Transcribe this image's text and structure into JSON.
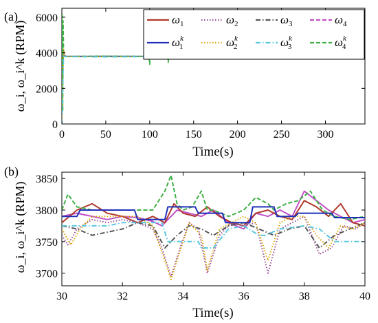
{
  "chart_data": [
    {
      "panel_label": "(a)",
      "type": "line",
      "xlabel": "Time(s)",
      "ylabel": "ω_i, ω_i^k (RPM)",
      "xlim": [
        0,
        345
      ],
      "ylim": [
        0,
        6500
      ],
      "xticks": [
        0,
        50,
        100,
        150,
        200,
        250,
        300
      ],
      "yticks": [
        0,
        2000,
        4000,
        6000
      ],
      "grid": false,
      "legend_position": "top-right",
      "legend": [
        {
          "main": "ω",
          "sub": "1",
          "sup": "",
          "color": "#b03a2e",
          "dash": "solid"
        },
        {
          "main": "ω",
          "sub": "2",
          "sup": "",
          "color": "#9b4f96",
          "dash": "dot"
        },
        {
          "main": "ω",
          "sub": "3",
          "sup": "",
          "color": "#555555",
          "dash": "dashdot"
        },
        {
          "main": "ω",
          "sub": "4",
          "sup": "",
          "color": "#c050c8",
          "dash": "dash"
        },
        {
          "main": "ω",
          "sub": "1",
          "sup": "k",
          "color": "#1f2fb8",
          "dash": "solid"
        },
        {
          "main": "ω",
          "sub": "2",
          "sup": "k",
          "color": "#d9a400",
          "dash": "dot"
        },
        {
          "main": "ω",
          "sub": "3",
          "sup": "k",
          "color": "#58c8e0",
          "dash": "dashdot"
        },
        {
          "main": "ω",
          "sub": "4",
          "sup": "k",
          "color": "#3cb043",
          "dash": "dash"
        }
      ],
      "series": [
        {
          "color": "#b03a2e",
          "dash": "solid",
          "x": [
            0,
            1,
            2,
            3,
            5,
            10,
            50,
            100,
            101,
            102,
            150,
            200,
            220,
            221,
            250,
            300,
            338
          ],
          "y": [
            0,
            3200,
            4100,
            3850,
            3800,
            3790,
            3800,
            3790,
            3850,
            3790,
            3800,
            3790,
            3830,
            3790,
            3800,
            3790,
            3800
          ]
        },
        {
          "color": "#1f2fb8",
          "dash": "solid",
          "x": [
            0,
            1,
            3,
            50,
            100,
            150,
            200,
            250,
            300,
            338
          ],
          "y": [
            3800,
            3800,
            3800,
            3800,
            3800,
            3780,
            3800,
            3790,
            3800,
            3790
          ]
        },
        {
          "color": "#3cb043",
          "dash": "dash",
          "x": [
            0,
            0.5,
            1,
            1.5,
            2,
            3,
            50,
            99,
            100,
            101,
            120,
            121,
            122,
            150,
            200,
            239,
            240,
            241,
            300,
            338
          ],
          "y": [
            300,
            6200,
            700,
            5800,
            3900,
            3800,
            3810,
            3800,
            3350,
            3800,
            3800,
            3450,
            3800,
            3800,
            3800,
            3800,
            4300,
            3800,
            3800,
            3800
          ]
        },
        {
          "color": "#d9a400",
          "dash": "dot",
          "x": [
            0,
            1,
            2,
            3,
            50,
            100,
            150,
            200,
            250,
            300,
            338
          ],
          "y": [
            0,
            2500,
            4200,
            3800,
            3780,
            3790,
            3780,
            3800,
            3790,
            3780,
            3790
          ]
        },
        {
          "color": "#58c8e0",
          "dash": "dashdot",
          "x": [
            0,
            1,
            2,
            3,
            50,
            100,
            150,
            200,
            250,
            300,
            338
          ],
          "y": [
            0,
            2000,
            3900,
            3780,
            3770,
            3780,
            3770,
            3780,
            3770,
            3780,
            3770
          ]
        }
      ]
    },
    {
      "panel_label": "(b)",
      "type": "line",
      "xlabel": "Time(s)",
      "ylabel": "ω_i, ω_i^k (RPM)",
      "xlim": [
        30,
        40
      ],
      "ylim": [
        3680,
        3860
      ],
      "xticks": [
        30,
        32,
        34,
        36,
        38,
        40
      ],
      "yticks": [
        3700,
        3750,
        3800,
        3850
      ],
      "grid": false,
      "series": [
        {
          "color": "#c050c8",
          "dash": "solid",
          "x": [
            30,
            30.5,
            31,
            31.5,
            32,
            32.5,
            33,
            33.3,
            33.6,
            33.8,
            34.2,
            34.6,
            35,
            35.5,
            36,
            36.4,
            36.8,
            37.2,
            37.6,
            38,
            38.4,
            38.8,
            39.2,
            39.6,
            40
          ],
          "y": [
            3790,
            3795,
            3790,
            3785,
            3790,
            3788,
            3782,
            3775,
            3790,
            3800,
            3795,
            3790,
            3800,
            3780,
            3770,
            3795,
            3790,
            3800,
            3790,
            3830,
            3815,
            3800,
            3790,
            3780,
            3785
          ]
        },
        {
          "color": "#b03a2e",
          "dash": "solid",
          "x": [
            30,
            30.5,
            31,
            31.5,
            32,
            32.5,
            33,
            33.4,
            33.7,
            34,
            34.4,
            34.8,
            35.2,
            35.6,
            36,
            36.4,
            36.8,
            37.2,
            37.6,
            38,
            38.4,
            38.8,
            39.2,
            39.6,
            40
          ],
          "y": [
            3780,
            3800,
            3810,
            3795,
            3790,
            3780,
            3790,
            3780,
            3810,
            3795,
            3790,
            3805,
            3790,
            3780,
            3775,
            3795,
            3800,
            3790,
            3785,
            3815,
            3805,
            3790,
            3810,
            3780,
            3775
          ]
        },
        {
          "color": "#9b4f96",
          "dash": "dot",
          "x": [
            30,
            30.2,
            30.5,
            31,
            31.5,
            32,
            32.5,
            33,
            33.3,
            33.6,
            33.9,
            34.2,
            34.5,
            34.8,
            35.2,
            35.6,
            36,
            36.4,
            36.8,
            37.2,
            37.6,
            38,
            38.5,
            38.9,
            39.3,
            39.7,
            40
          ],
          "y": [
            3760,
            3745,
            3770,
            3785,
            3780,
            3785,
            3780,
            3770,
            3740,
            3695,
            3740,
            3780,
            3770,
            3700,
            3760,
            3780,
            3775,
            3780,
            3700,
            3770,
            3780,
            3790,
            3730,
            3740,
            3775,
            3770,
            3780
          ]
        },
        {
          "color": "#555555",
          "dash": "dashdot",
          "x": [
            30,
            30.5,
            31,
            31.5,
            32,
            32.5,
            33,
            33.4,
            33.8,
            34.2,
            34.6,
            35,
            35.5,
            36,
            36.5,
            37,
            37.5,
            38,
            38.5,
            39,
            39.5,
            40
          ],
          "y": [
            3775,
            3770,
            3760,
            3765,
            3770,
            3780,
            3775,
            3740,
            3760,
            3775,
            3770,
            3760,
            3775,
            3780,
            3770,
            3760,
            3770,
            3775,
            3740,
            3760,
            3770,
            3780
          ]
        },
        {
          "color": "#d9a400",
          "dash": "dot",
          "x": [
            30,
            30.3,
            30.6,
            31,
            31.5,
            32,
            32.5,
            33,
            33.4,
            33.6,
            33.8,
            34.2,
            34.6,
            34.8,
            35.2,
            35.6,
            36,
            36.4,
            36.8,
            37.2,
            37.6,
            38,
            38.4,
            38.8,
            39.2,
            39.6,
            40
          ],
          "y": [
            3770,
            3745,
            3770,
            3790,
            3790,
            3790,
            3790,
            3775,
            3720,
            3690,
            3720,
            3780,
            3760,
            3705,
            3770,
            3780,
            3790,
            3780,
            3720,
            3780,
            3790,
            3790,
            3760,
            3740,
            3775,
            3770,
            3780
          ]
        },
        {
          "color": "#58c8e0",
          "dash": "dashdot",
          "x": [
            30,
            31,
            31.5,
            32,
            33,
            33.3,
            33.5,
            34,
            34.5,
            34.6,
            35,
            35.5,
            36,
            36.5,
            36.7,
            37.2,
            38,
            38.5,
            39,
            39.5,
            40
          ],
          "y": [
            3775,
            3775,
            3775,
            3780,
            3780,
            3780,
            3750,
            3750,
            3750,
            3740,
            3740,
            3770,
            3775,
            3760,
            3760,
            3770,
            3775,
            3770,
            3750,
            3750,
            3750
          ]
        },
        {
          "color": "#3cb043",
          "dash": "dash",
          "x": [
            30,
            30.2,
            30.5,
            31,
            31.5,
            32,
            32.5,
            33,
            33.4,
            33.6,
            33.8,
            34,
            34.3,
            34.6,
            34.8,
            35,
            35.5,
            36,
            36.4,
            36.8,
            37,
            37.4,
            37.8,
            38.2,
            38.6,
            39,
            39.5,
            40
          ],
          "y": [
            3800,
            3825,
            3805,
            3800,
            3800,
            3800,
            3800,
            3800,
            3830,
            3855,
            3810,
            3800,
            3805,
            3830,
            3800,
            3800,
            3790,
            3800,
            3820,
            3810,
            3800,
            3810,
            3815,
            3830,
            3800,
            3790,
            3785,
            3790
          ]
        },
        {
          "color": "#1f2fb8",
          "dash": "solid",
          "x": [
            30,
            30.5,
            30.6,
            32.4,
            32.5,
            33.4,
            33.5,
            34.4,
            34.5,
            35.3,
            35.4,
            36.2,
            36.3,
            37,
            37.1,
            37.7,
            37.8,
            38.9,
            39,
            40
          ],
          "y": [
            3790,
            3790,
            3800,
            3800,
            3785,
            3785,
            3805,
            3805,
            3795,
            3795,
            3780,
            3780,
            3805,
            3805,
            3790,
            3790,
            3795,
            3795,
            3788,
            3788
          ]
        }
      ]
    }
  ]
}
